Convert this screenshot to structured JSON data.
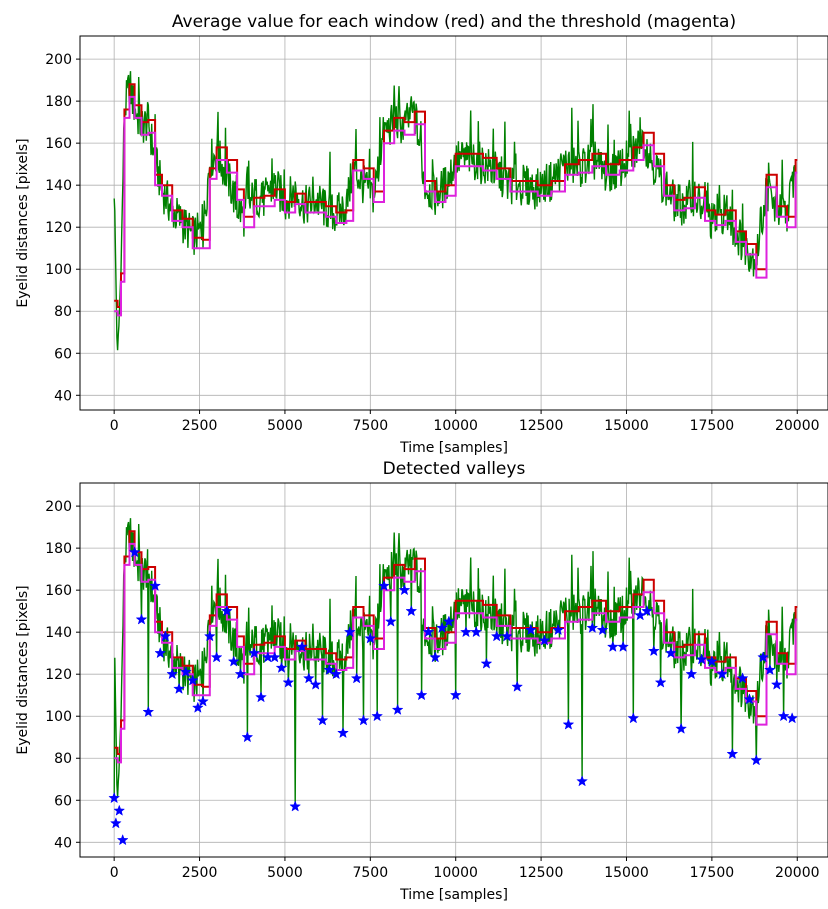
{
  "chart_data": [
    {
      "type": "line",
      "title": "Average value for each window (red) and the threshold (magenta)",
      "xlabel": "Time [samples]",
      "ylabel": "Eyelid distances [pixels]",
      "xlim": [
        -1000,
        20900
      ],
      "ylim": [
        33,
        211
      ],
      "xticks": [
        0,
        2500,
        5000,
        7500,
        10000,
        12500,
        15000,
        17500,
        20000
      ],
      "yticks": [
        40,
        60,
        80,
        100,
        120,
        140,
        160,
        180,
        200
      ],
      "grid": true,
      "colors": {
        "signal": "#008000",
        "average": "#cc0000",
        "threshold": "#dd22dd"
      },
      "series": [
        {
          "role": "signal",
          "x": [
            0,
            100,
            200,
            300,
            450,
            600,
            800,
            1000,
            1200,
            1400,
            1700,
            2000,
            2300,
            2600,
            2800,
            3000,
            3300,
            3600,
            3800,
            4100,
            4400,
            4700,
            5000,
            5300,
            5600,
            5900,
            6200,
            6500,
            6800,
            7000,
            7300,
            7600,
            7900,
            8200,
            8500,
            8800,
            9100,
            9400,
            9700,
            10000,
            10400,
            10800,
            11200,
            11600,
            12000,
            12400,
            12800,
            13200,
            13600,
            14000,
            14400,
            14800,
            15200,
            15500,
            15800,
            16100,
            16400,
            16700,
            17000,
            17300,
            17600,
            17900,
            18200,
            18500,
            18800,
            19100,
            19400,
            19700,
            19950
          ],
          "y": [
            140,
            55,
            100,
            175,
            188,
            176,
            168,
            170,
            152,
            138,
            128,
            122,
            116,
            118,
            152,
            155,
            145,
            130,
            125,
            135,
            133,
            140,
            132,
            137,
            130,
            133,
            128,
            126,
            130,
            148,
            140,
            135,
            165,
            170,
            168,
            175,
            140,
            135,
            140,
            152,
            153,
            150,
            146,
            140,
            140,
            138,
            142,
            150,
            148,
            152,
            145,
            148,
            155,
            162,
            150,
            140,
            132,
            130,
            136,
            125,
            122,
            128,
            118,
            110,
            105,
            138,
            128,
            125,
            150
          ]
        },
        {
          "role": "average",
          "x": [
            0,
            100,
            200,
            300,
            450,
            600,
            800,
            1000,
            1200,
            1400,
            1700,
            2000,
            2300,
            2600,
            2800,
            3000,
            3300,
            3600,
            3800,
            4100,
            4400,
            4700,
            5000,
            5300,
            5600,
            5900,
            6200,
            6500,
            6800,
            7000,
            7300,
            7600,
            7900,
            8200,
            8500,
            8800,
            9100,
            9400,
            9700,
            10000,
            10400,
            10800,
            11200,
            11600,
            12000,
            12400,
            12800,
            13200,
            13600,
            14000,
            14400,
            14800,
            15200,
            15500,
            15800,
            16100,
            16400,
            16700,
            17000,
            17300,
            17600,
            17900,
            18200,
            18500,
            18800,
            19100,
            19400,
            19700,
            19950
          ],
          "y": [
            85,
            82,
            98,
            176,
            188,
            178,
            170,
            171,
            145,
            140,
            128,
            124,
            115,
            114,
            148,
            158,
            152,
            138,
            125,
            134,
            135,
            138,
            132,
            136,
            132,
            132,
            130,
            127,
            128,
            152,
            148,
            137,
            166,
            172,
            170,
            175,
            142,
            137,
            140,
            155,
            155,
            153,
            148,
            142,
            142,
            140,
            142,
            150,
            152,
            155,
            150,
            152,
            158,
            165,
            155,
            140,
            133,
            134,
            139,
            128,
            126,
            128,
            118,
            112,
            100,
            145,
            130,
            125,
            152
          ]
        },
        {
          "role": "threshold",
          "x": [
            0,
            100,
            200,
            300,
            450,
            600,
            800,
            1000,
            1200,
            1400,
            1700,
            2000,
            2300,
            2600,
            2800,
            3000,
            3300,
            3600,
            3800,
            4100,
            4400,
            4700,
            5000,
            5300,
            5600,
            5900,
            6200,
            6500,
            6800,
            7000,
            7300,
            7600,
            7900,
            8200,
            8500,
            8800,
            9100,
            9400,
            9700,
            10000,
            10400,
            10800,
            11200,
            11600,
            12000,
            12400,
            12800,
            13200,
            13600,
            14000,
            14400,
            14800,
            15200,
            15500,
            15800,
            16100,
            16400,
            16700,
            17000,
            17300,
            17600,
            17900,
            18200,
            18500,
            18800,
            19100,
            19400,
            19700,
            19950
          ],
          "y": [
            80,
            78,
            94,
            172,
            182,
            172,
            164,
            165,
            140,
            135,
            123,
            120,
            110,
            110,
            143,
            152,
            146,
            133,
            120,
            130,
            130,
            133,
            127,
            131,
            127,
            127,
            125,
            122,
            123,
            147,
            143,
            132,
            160,
            166,
            164,
            169,
            137,
            132,
            135,
            149,
            149,
            147,
            143,
            137,
            137,
            135,
            137,
            145,
            146,
            149,
            145,
            147,
            152,
            159,
            149,
            135,
            128,
            129,
            134,
            123,
            121,
            123,
            113,
            107,
            96,
            139,
            125,
            120,
            146
          ]
        }
      ]
    },
    {
      "type": "line",
      "title": "Detected valleys",
      "xlabel": "Time [samples]",
      "ylabel": "Eyelid distances [pixels]",
      "xlim": [
        -1000,
        20900
      ],
      "ylim": [
        33,
        211
      ],
      "xticks": [
        0,
        2500,
        5000,
        7500,
        10000,
        12500,
        15000,
        17500,
        20000
      ],
      "yticks": [
        40,
        60,
        80,
        100,
        120,
        140,
        160,
        180,
        200
      ],
      "grid": true,
      "colors": {
        "signal": "#008000",
        "average": "#cc0000",
        "threshold": "#dd22dd",
        "valleys": "#0000ff"
      },
      "series": [
        {
          "role": "signal",
          "x": [
            0,
            100,
            200,
            300,
            450,
            600,
            800,
            1000,
            1200,
            1400,
            1700,
            2000,
            2300,
            2600,
            2800,
            3000,
            3300,
            3600,
            3800,
            4100,
            4400,
            4700,
            5000,
            5300,
            5600,
            5900,
            6200,
            6500,
            6800,
            7000,
            7300,
            7600,
            7900,
            8200,
            8500,
            8800,
            9100,
            9400,
            9700,
            10000,
            10400,
            10800,
            11200,
            11600,
            12000,
            12400,
            12800,
            13200,
            13600,
            14000,
            14400,
            14800,
            15200,
            15500,
            15800,
            16100,
            16400,
            16700,
            17000,
            17300,
            17600,
            17900,
            18200,
            18500,
            18800,
            19100,
            19400,
            19700,
            19950
          ],
          "y": [
            140,
            55,
            100,
            175,
            188,
            176,
            168,
            170,
            152,
            138,
            128,
            122,
            116,
            118,
            152,
            155,
            145,
            130,
            125,
            135,
            133,
            140,
            132,
            137,
            130,
            133,
            128,
            126,
            130,
            148,
            140,
            135,
            165,
            170,
            168,
            175,
            140,
            135,
            140,
            152,
            153,
            150,
            146,
            140,
            140,
            138,
            142,
            150,
            148,
            152,
            145,
            148,
            155,
            162,
            150,
            140,
            132,
            130,
            136,
            125,
            122,
            128,
            118,
            110,
            105,
            138,
            128,
            125,
            150
          ]
        },
        {
          "role": "average",
          "x": [
            0,
            100,
            200,
            300,
            450,
            600,
            800,
            1000,
            1200,
            1400,
            1700,
            2000,
            2300,
            2600,
            2800,
            3000,
            3300,
            3600,
            3800,
            4100,
            4400,
            4700,
            5000,
            5300,
            5600,
            5900,
            6200,
            6500,
            6800,
            7000,
            7300,
            7600,
            7900,
            8200,
            8500,
            8800,
            9100,
            9400,
            9700,
            10000,
            10400,
            10800,
            11200,
            11600,
            12000,
            12400,
            12800,
            13200,
            13600,
            14000,
            14400,
            14800,
            15200,
            15500,
            15800,
            16100,
            16400,
            16700,
            17000,
            17300,
            17600,
            17900,
            18200,
            18500,
            18800,
            19100,
            19400,
            19700,
            19950
          ],
          "y": [
            85,
            82,
            98,
            176,
            188,
            178,
            170,
            171,
            145,
            140,
            128,
            124,
            115,
            114,
            148,
            158,
            152,
            138,
            125,
            134,
            135,
            138,
            132,
            136,
            132,
            132,
            130,
            127,
            128,
            152,
            148,
            137,
            166,
            172,
            170,
            175,
            142,
            137,
            140,
            155,
            155,
            153,
            148,
            142,
            142,
            140,
            142,
            150,
            152,
            155,
            150,
            152,
            158,
            165,
            155,
            140,
            133,
            134,
            139,
            128,
            126,
            128,
            118,
            112,
            100,
            145,
            130,
            125,
            152
          ]
        },
        {
          "role": "threshold",
          "x": [
            0,
            100,
            200,
            300,
            450,
            600,
            800,
            1000,
            1200,
            1400,
            1700,
            2000,
            2300,
            2600,
            2800,
            3000,
            3300,
            3600,
            3800,
            4100,
            4400,
            4700,
            5000,
            5300,
            5600,
            5900,
            6200,
            6500,
            6800,
            7000,
            7300,
            7600,
            7900,
            8200,
            8500,
            8800,
            9100,
            9400,
            9700,
            10000,
            10400,
            10800,
            11200,
            11600,
            12000,
            12400,
            12800,
            13200,
            13600,
            14000,
            14400,
            14800,
            15200,
            15500,
            15800,
            16100,
            16400,
            16700,
            17000,
            17300,
            17600,
            17900,
            18200,
            18500,
            18800,
            19100,
            19400,
            19700,
            19950
          ],
          "y": [
            80,
            78,
            94,
            172,
            182,
            172,
            164,
            165,
            140,
            135,
            123,
            120,
            110,
            110,
            143,
            152,
            146,
            133,
            120,
            130,
            130,
            133,
            127,
            131,
            127,
            127,
            125,
            122,
            123,
            147,
            143,
            132,
            160,
            166,
            164,
            169,
            137,
            132,
            135,
            149,
            149,
            147,
            143,
            137,
            137,
            135,
            137,
            145,
            146,
            149,
            145,
            147,
            152,
            159,
            149,
            135,
            128,
            129,
            134,
            123,
            121,
            123,
            113,
            107,
            96,
            139,
            125,
            120,
            146
          ]
        },
        {
          "role": "valleys",
          "marker": "star",
          "x": [
            0,
            50,
            150,
            250,
            600,
            800,
            1000,
            1200,
            1350,
            1500,
            1700,
            1900,
            2100,
            2300,
            2450,
            2600,
            2800,
            3000,
            3300,
            3500,
            3700,
            3900,
            4100,
            4300,
            4500,
            4700,
            4900,
            5100,
            5300,
            5500,
            5700,
            5900,
            6100,
            6300,
            6500,
            6700,
            6900,
            7100,
            7300,
            7500,
            7700,
            7900,
            8100,
            8300,
            8500,
            8700,
            9000,
            9200,
            9400,
            9600,
            9800,
            10000,
            10300,
            10600,
            10900,
            11200,
            11500,
            11800,
            12200,
            12600,
            13000,
            13300,
            13700,
            14000,
            14300,
            14600,
            14900,
            15200,
            15400,
            15600,
            15800,
            16000,
            16300,
            16600,
            16900,
            17200,
            17500,
            17800,
            18100,
            18400,
            18600,
            18800,
            19000,
            19200,
            19400,
            19600,
            19850
          ],
          "y": [
            61,
            49,
            55,
            41,
            178,
            146,
            102,
            162,
            130,
            138,
            120,
            113,
            121,
            117,
            104,
            107,
            138,
            128,
            150,
            126,
            120,
            90,
            130,
            109,
            128,
            128,
            123,
            116,
            57,
            133,
            118,
            115,
            98,
            122,
            120,
            92,
            140,
            118,
            98,
            137,
            100,
            162,
            145,
            103,
            160,
            150,
            110,
            140,
            128,
            142,
            145,
            110,
            140,
            140,
            125,
            138,
            138,
            114,
            141,
            136,
            141,
            96,
            69,
            142,
            141,
            133,
            133,
            99,
            148,
            150,
            131,
            116,
            130,
            94,
            120,
            127,
            126,
            120,
            82,
            118,
            108,
            79,
            128,
            122,
            115,
            100,
            99
          ]
        }
      ]
    }
  ]
}
